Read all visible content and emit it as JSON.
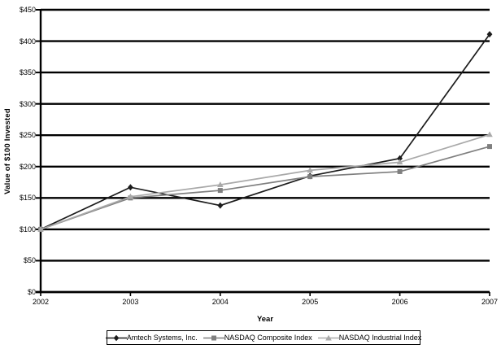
{
  "window": {
    "background": "#ffffff"
  },
  "chart_data": {
    "type": "line",
    "title": "",
    "xlabel": "Year",
    "ylabel": "Value of $100 Invested",
    "categories": [
      "2002",
      "2003",
      "2004",
      "2005",
      "2006",
      "2007"
    ],
    "y_tick_labels": [
      "$0",
      "$50",
      "$100",
      "$150",
      "$200",
      "$250",
      "$300",
      "$350",
      "$400",
      "$450"
    ],
    "ylim": [
      0,
      450
    ],
    "y_tick_step": 50,
    "grid": "horizontal-solid-black",
    "legend_position": "bottom-center-boxed",
    "axis_color": "#000000",
    "series": [
      {
        "name": "Amtech Systems, Inc.",
        "marker": "diamond",
        "color": "#1c1c1c",
        "values": [
          100,
          167,
          138,
          185,
          213,
          411
        ]
      },
      {
        "name": "NASDAQ Composite Index",
        "marker": "square",
        "color": "#7f7f7f",
        "values": [
          100,
          150,
          162,
          184,
          192,
          232
        ]
      },
      {
        "name": "NASDAQ Industrial Index",
        "marker": "triangle",
        "color": "#a9a9a9",
        "values": [
          100,
          152,
          171,
          194,
          207,
          251
        ]
      }
    ]
  }
}
